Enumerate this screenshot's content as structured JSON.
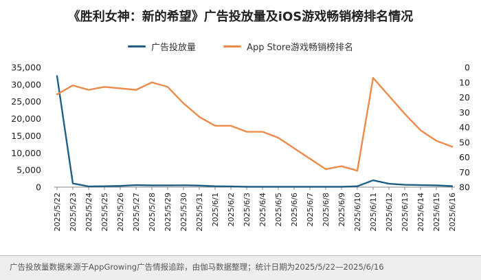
{
  "colors": {
    "background": "#ffffff",
    "footer_bg": "#eeeeee"
  },
  "chart_data": {
    "type": "line",
    "title": "《胜利女神：新的希望》广告投放量及iOS游戏畅销榜排名情况",
    "legend": [
      {
        "name": "广告投放量",
        "color": "#1f5f87"
      },
      {
        "name": "App Store游戏畅销榜排名",
        "color": "#ee8a4a"
      }
    ],
    "x": [
      "2025/5/22",
      "2025/5/23",
      "2025/5/24",
      "2025/5/25",
      "2025/5/26",
      "2025/5/27",
      "2025/5/28",
      "2025/5/29",
      "2025/5/30",
      "2025/5/31",
      "2025/6/1",
      "2025/6/2",
      "2025/6/3",
      "2025/6/4",
      "2025/6/5",
      "2025/6/6",
      "2025/6/7",
      "2025/6/8",
      "2025/6/9",
      "2025/6/10",
      "2025/6/11",
      "2025/6/12",
      "2025/6/13",
      "2025/6/14",
      "2025/6/15",
      "2025/6/16"
    ],
    "left_axis": {
      "min": 0,
      "max": 35000,
      "ticks": [
        0,
        5000,
        10000,
        15000,
        20000,
        25000,
        30000,
        35000
      ],
      "tick_labels": [
        "0",
        "5,000",
        "10,000",
        "15,000",
        "20,000",
        "25,000",
        "30,000",
        "35,000"
      ]
    },
    "right_axis": {
      "min": 0,
      "max": 80,
      "inverted": true,
      "ticks": [
        0,
        10,
        20,
        30,
        40,
        50,
        60,
        70,
        80
      ],
      "tick_labels": [
        "0",
        "10",
        "20",
        "30",
        "40",
        "50",
        "60",
        "70",
        "80"
      ]
    },
    "series": [
      {
        "name": "广告投放量",
        "axis": "left",
        "color": "#1f5f87",
        "values": [
          32500,
          1100,
          200,
          250,
          350,
          600,
          500,
          500,
          550,
          450,
          250,
          200,
          100,
          100,
          100,
          100,
          100,
          100,
          100,
          250,
          2000,
          1000,
          700,
          600,
          500,
          300
        ]
      },
      {
        "name": "App Store游戏畅销榜排名",
        "axis": "right",
        "color": "#ee8a4a",
        "values": [
          18,
          12,
          15,
          13,
          14,
          15,
          10,
          13,
          24,
          33,
          39,
          39,
          43,
          43,
          47,
          54,
          61,
          68,
          66,
          69,
          7,
          19,
          31,
          42,
          49,
          53
        ]
      }
    ],
    "grid": false,
    "legend_position": "top-center"
  },
  "footer": {
    "note": "广告投放量数据来源于AppGrowing广告情报追踪，由伽马数据整理；统计日期为2025/5/22—2025/6/16"
  }
}
